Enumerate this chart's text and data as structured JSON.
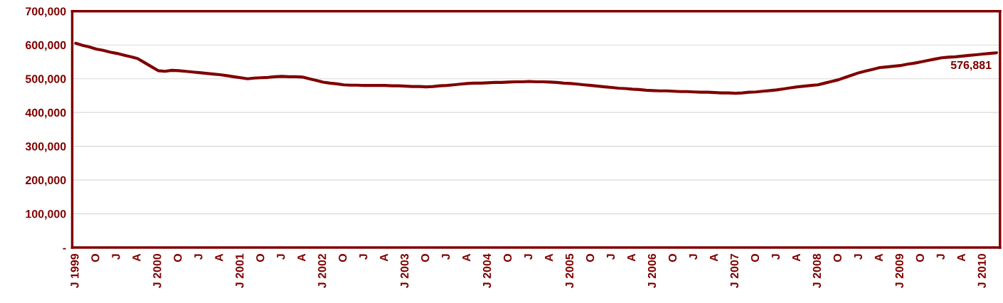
{
  "chart_data": {
    "type": "line",
    "categories": [
      "J 1999",
      null,
      null,
      "O",
      null,
      null,
      "J",
      null,
      null,
      "A",
      null,
      null,
      "J 2000",
      null,
      null,
      "O",
      null,
      null,
      "J",
      null,
      null,
      "A",
      null,
      null,
      "J 2001",
      null,
      null,
      "O",
      null,
      null,
      "J",
      null,
      null,
      "A",
      null,
      null,
      "J 2002",
      null,
      null,
      "O",
      null,
      null,
      "J",
      null,
      null,
      "A",
      null,
      null,
      "J 2003",
      null,
      null,
      "O",
      null,
      null,
      "J",
      null,
      null,
      "A",
      null,
      null,
      "J 2004",
      null,
      null,
      "O",
      null,
      null,
      "J",
      null,
      null,
      "A",
      null,
      null,
      "J 2005",
      null,
      null,
      "O",
      null,
      null,
      "J",
      null,
      null,
      "A",
      null,
      null,
      "J 2006",
      null,
      null,
      "O",
      null,
      null,
      "J",
      null,
      null,
      "A",
      null,
      null,
      "J 2007",
      null,
      null,
      "O",
      null,
      null,
      "J",
      null,
      null,
      "A",
      null,
      null,
      "J 2008",
      null,
      null,
      "O",
      null,
      null,
      "J",
      null,
      null,
      "A",
      null,
      null,
      "J 2009",
      null,
      null,
      "O",
      null,
      null,
      "J",
      null,
      null,
      "A",
      null,
      null,
      "J 2010",
      null,
      null
    ],
    "series": [
      {
        "color": "#800000",
        "values": [
          605000,
          599000,
          594000,
          588000,
          584000,
          579000,
          575000,
          570000,
          565000,
          560000,
          548000,
          536000,
          524000,
          522000,
          525000,
          524000,
          522000,
          520000,
          518000,
          516000,
          514000,
          512000,
          509000,
          506000,
          503000,
          500000,
          502000,
          503000,
          504000,
          506000,
          507000,
          506000,
          506000,
          505000,
          500000,
          495000,
          490000,
          487000,
          485000,
          482000,
          481000,
          481000,
          480000,
          480000,
          480000,
          480000,
          479000,
          479000,
          478000,
          477000,
          477000,
          476000,
          477000,
          479000,
          480000,
          482000,
          484000,
          486000,
          487000,
          487000,
          488000,
          489000,
          489000,
          490000,
          491000,
          491000,
          492000,
          491000,
          491000,
          490000,
          489000,
          487000,
          486000,
          484000,
          482000,
          480000,
          478000,
          476000,
          474000,
          472000,
          471000,
          469000,
          468000,
          466000,
          465000,
          464000,
          464000,
          463000,
          462000,
          462000,
          461000,
          460000,
          460000,
          459000,
          458000,
          458000,
          457000,
          458000,
          460000,
          461000,
          463000,
          465000,
          467000,
          470000,
          473000,
          476000,
          478000,
          480000,
          482000,
          487000,
          492000,
          497000,
          504000,
          511000,
          518000,
          523000,
          528000,
          533000,
          535000,
          537000,
          539000,
          543000,
          546000,
          550000,
          554000,
          558000,
          562000,
          564000,
          565000,
          567000,
          569000,
          571000,
          573000,
          575000,
          576881
        ]
      }
    ],
    "ylim": [
      0,
      700000
    ],
    "yticks": [
      {
        "value": 0,
        "label": "-"
      },
      {
        "value": 100000,
        "label": "100,000"
      },
      {
        "value": 200000,
        "label": "200,000"
      },
      {
        "value": 300000,
        "label": "300,000"
      },
      {
        "value": 400000,
        "label": "400,000"
      },
      {
        "value": 500000,
        "label": "500,000"
      },
      {
        "value": 600000,
        "label": "600,000"
      },
      {
        "value": 700000,
        "label": "700,000"
      }
    ],
    "grid": "y",
    "annotations": [
      "576,881"
    ]
  }
}
